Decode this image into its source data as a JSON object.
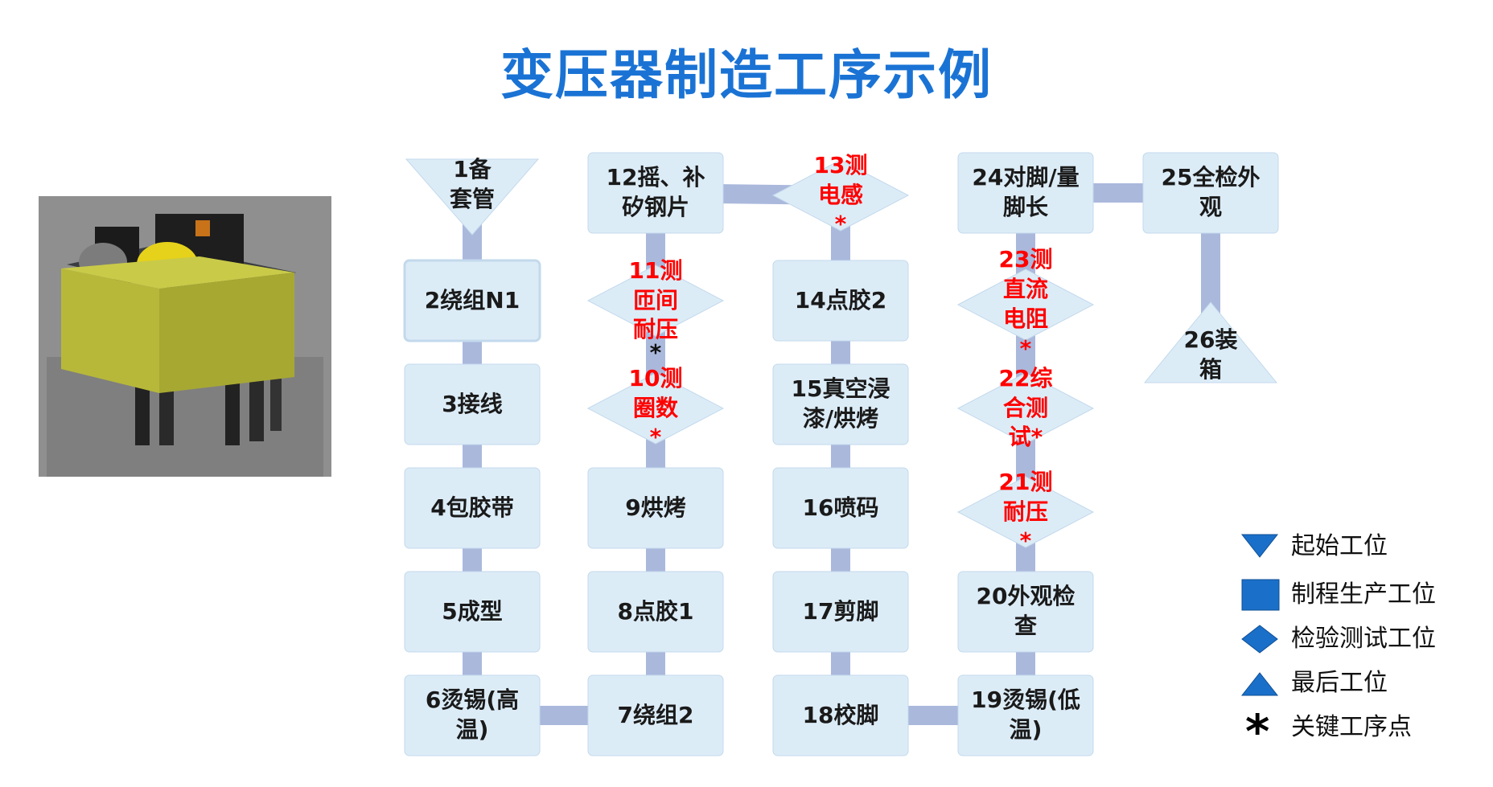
{
  "title": "变压器制造工序示例",
  "colors": {
    "title": "#1a73d4",
    "box_fill": "#dcecf7",
    "box_stroke": "#c3d9ec",
    "connector": "#aab8dc",
    "legend_fill": "#1a6fc9",
    "critical": "#ff0000"
  },
  "photo_description_icon": "transformer-photo",
  "steps": [
    {
      "id": "s1",
      "shape": "start",
      "lines": [
        "1备",
        "套管"
      ],
      "critical": false
    },
    {
      "id": "s2",
      "shape": "process",
      "lines": [
        "2绕组N1"
      ],
      "critical": false
    },
    {
      "id": "s3",
      "shape": "process",
      "lines": [
        "3接线"
      ],
      "critical": false
    },
    {
      "id": "s4",
      "shape": "process",
      "lines": [
        "4包胶带"
      ],
      "critical": false
    },
    {
      "id": "s5",
      "shape": "process",
      "lines": [
        "5成型"
      ],
      "critical": false
    },
    {
      "id": "s6",
      "shape": "process",
      "lines": [
        "6烫锡(高",
        "温)"
      ],
      "critical": false
    },
    {
      "id": "s7",
      "shape": "process",
      "lines": [
        "7绕组2"
      ],
      "critical": false
    },
    {
      "id": "s8",
      "shape": "process",
      "lines": [
        "8点胶1"
      ],
      "critical": false
    },
    {
      "id": "s9",
      "shape": "process",
      "lines": [
        "9烘烤"
      ],
      "critical": false
    },
    {
      "id": "s10",
      "shape": "inspection",
      "lines": [
        "10测",
        "圈数",
        "*"
      ],
      "critical": true
    },
    {
      "id": "s11",
      "shape": "inspection",
      "lines": [
        "11测",
        "匝间",
        "耐压"
      ],
      "critical": true,
      "extra_star": "*"
    },
    {
      "id": "s12",
      "shape": "process",
      "lines": [
        "12摇、补",
        "矽钢片"
      ],
      "critical": false
    },
    {
      "id": "s13",
      "shape": "inspection",
      "lines": [
        "13测",
        "电感",
        "*"
      ],
      "critical": true
    },
    {
      "id": "s14",
      "shape": "process",
      "lines": [
        "14点胶2"
      ],
      "critical": false
    },
    {
      "id": "s15",
      "shape": "process",
      "lines": [
        "15真空浸",
        "漆/烘烤"
      ],
      "critical": false
    },
    {
      "id": "s16",
      "shape": "process",
      "lines": [
        "16喷码"
      ],
      "critical": false
    },
    {
      "id": "s17",
      "shape": "process",
      "lines": [
        "17剪脚"
      ],
      "critical": false
    },
    {
      "id": "s18",
      "shape": "process",
      "lines": [
        "18校脚"
      ],
      "critical": false
    },
    {
      "id": "s19",
      "shape": "process",
      "lines": [
        "19烫锡(低",
        "温)"
      ],
      "critical": false
    },
    {
      "id": "s20",
      "shape": "process",
      "lines": [
        "20外观检",
        "查"
      ],
      "critical": false
    },
    {
      "id": "s21",
      "shape": "inspection",
      "lines": [
        "21测",
        "耐压",
        "*"
      ],
      "critical": true
    },
    {
      "id": "s22",
      "shape": "inspection",
      "lines": [
        "22综",
        "合测",
        "试*"
      ],
      "critical": true
    },
    {
      "id": "s23",
      "shape": "inspection",
      "lines": [
        "23测",
        "直流",
        "电阻",
        "*"
      ],
      "critical": true
    },
    {
      "id": "s24",
      "shape": "process",
      "lines": [
        "24对脚/量",
        "脚长"
      ],
      "critical": false
    },
    {
      "id": "s25",
      "shape": "process",
      "lines": [
        "25全检外",
        "观"
      ],
      "critical": false
    },
    {
      "id": "s26",
      "shape": "end",
      "lines": [
        "26装",
        "箱"
      ],
      "critical": false
    }
  ],
  "legend": [
    {
      "icon": "triangle-down-icon",
      "label": "起始工位"
    },
    {
      "icon": "square-icon",
      "label": "制程生产工位"
    },
    {
      "icon": "diamond-icon",
      "label": "检验测试工位"
    },
    {
      "icon": "triangle-up-icon",
      "label": "最后工位"
    },
    {
      "icon": "asterisk-icon",
      "label": "关键工序点"
    }
  ]
}
